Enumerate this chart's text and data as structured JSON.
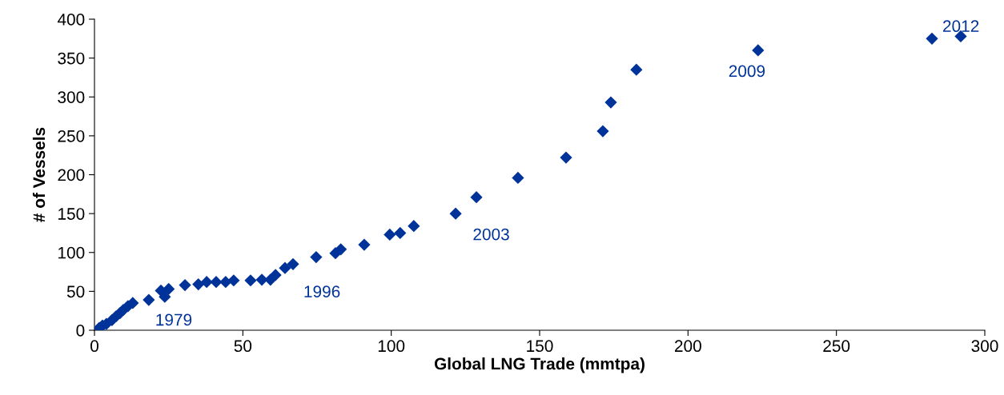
{
  "chart_data": {
    "type": "scatter",
    "xlabel": "Global LNG Trade (mmtpa)",
    "ylabel": "# of Vessels",
    "x": [
      1.6,
      2.7,
      4,
      5.9,
      7.3,
      8.6,
      9.7,
      11.3,
      12.9,
      18.3,
      22.4,
      23.7,
      25,
      30.5,
      35,
      37.8,
      41,
      44.2,
      46.9,
      52.6,
      56.4,
      59.3,
      61,
      64.2,
      66.9,
      74.7,
      81.2,
      83,
      90.9,
      99.5,
      103,
      107.6,
      121.7,
      128.7,
      142.7,
      158.9,
      171.3,
      174,
      182.6,
      223.6,
      282.2,
      291.9
    ],
    "values": [
      3,
      6,
      8,
      13,
      18,
      22,
      26,
      31,
      35,
      39,
      51,
      43,
      53,
      58,
      59,
      62,
      62,
      62,
      64,
      64,
      65,
      65,
      71,
      80,
      85,
      94,
      99,
      104,
      110,
      123,
      125,
      134,
      150,
      171,
      196,
      222,
      256,
      293,
      335,
      360,
      375,
      378
    ],
    "color": "#003399",
    "marker": "diamond",
    "grid": false,
    "legend": false,
    "xlim": [
      0,
      300
    ],
    "xticks": [
      0,
      50,
      100,
      150,
      200,
      250,
      300
    ],
    "ylim": [
      0,
      400
    ],
    "yticks": [
      0,
      50,
      100,
      150,
      200,
      250,
      300,
      350,
      400
    ],
    "annotations": [
      {
        "text": "1979",
        "x": 23.7,
        "y": 43
      },
      {
        "text": "1996",
        "x": 66.9,
        "y": 85
      },
      {
        "text": "2003",
        "x": 121.7,
        "y": 150
      },
      {
        "text": "2009",
        "x": 223.6,
        "y": 360
      },
      {
        "text": "2012",
        "x": 282.2,
        "y": 375
      }
    ]
  }
}
